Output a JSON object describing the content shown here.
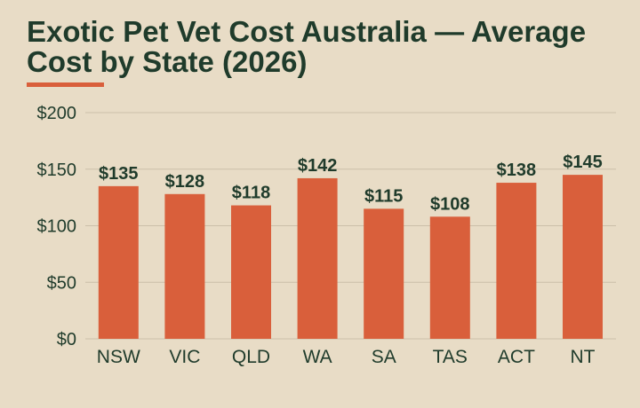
{
  "chart_data": {
    "type": "bar",
    "title": "Exotic Pet Vet Cost Australia — Average Cost by State (2026)",
    "xlabel": "",
    "ylabel": "",
    "categories": [
      "NSW",
      "VIC",
      "QLD",
      "WA",
      "SA",
      "TAS",
      "ACT",
      "NT"
    ],
    "values": [
      135,
      128,
      118,
      142,
      115,
      108,
      138,
      145
    ],
    "value_labels": [
      "$135",
      "$128",
      "$118",
      "$142",
      "$115",
      "$108",
      "$138",
      "$145"
    ],
    "ylim": [
      0,
      200
    ],
    "yticks": [
      0,
      50,
      100,
      150,
      200
    ],
    "ytick_labels": [
      "$0",
      "$50",
      "$100",
      "$150",
      "$200"
    ],
    "grid": true,
    "legend": "none",
    "colors": {
      "bar": "#d95f3b",
      "background": "#e8dcc6",
      "title": "#1f3b2b",
      "accent": "#d95f3b",
      "grid": "#cbbfa9",
      "axis_text": "#1f3b2b"
    }
  }
}
